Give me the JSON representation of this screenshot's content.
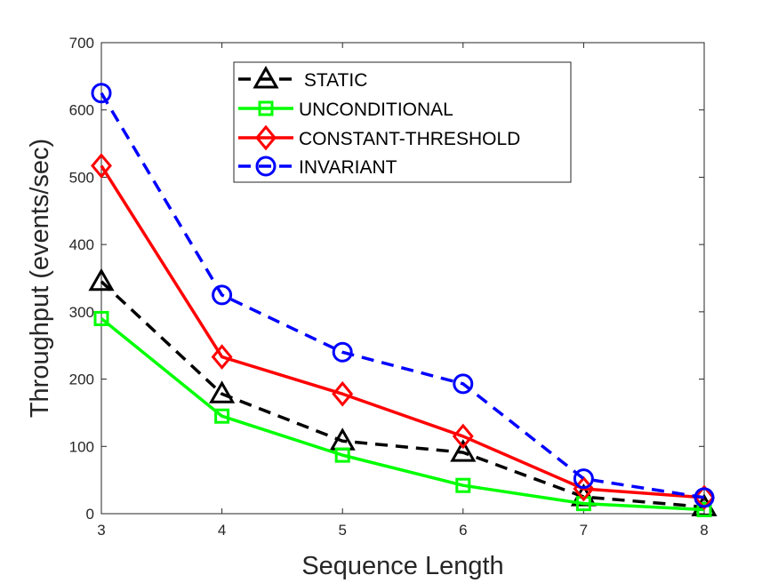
{
  "chart_data": {
    "type": "line",
    "title": "",
    "xlabel": "Sequence Length",
    "ylabel": "Throughput (events/sec)",
    "x": [
      3,
      4,
      5,
      6,
      7,
      8
    ],
    "xlim": [
      3,
      8
    ],
    "ylim": [
      0,
      700
    ],
    "xticks": [
      "3",
      "4",
      "5",
      "6",
      "7",
      "8"
    ],
    "yticks": [
      "0",
      "100",
      "200",
      "300",
      "400",
      "500",
      "600",
      "700"
    ],
    "grid": false,
    "legend_position": "top-center",
    "series": [
      {
        "name": "STATIC",
        "legend_label": " STATIC",
        "color": "#000000",
        "line_style": "dashed",
        "marker": "triangle",
        "values": [
          345,
          178,
          108,
          91,
          25,
          10
        ]
      },
      {
        "name": "UNCONDITIONAL",
        "legend_label": "UNCONDITIONAL",
        "color": "#00ff00",
        "line_style": "solid",
        "marker": "square",
        "values": [
          290,
          145,
          87,
          42,
          15,
          6
        ]
      },
      {
        "name": "CONSTANT-THRESHOLD",
        "legend_label": "CONSTANT-THRESHOLD",
        "color": "#ff0000",
        "line_style": "solid",
        "marker": "diamond",
        "values": [
          517,
          233,
          178,
          115,
          37,
          24
        ]
      },
      {
        "name": "INVARIANT",
        "legend_label": "INVARIANT",
        "color": "#0000ff",
        "line_style": "dashed",
        "marker": "circle",
        "values": [
          625,
          325,
          240,
          193,
          52,
          24
        ]
      }
    ]
  }
}
